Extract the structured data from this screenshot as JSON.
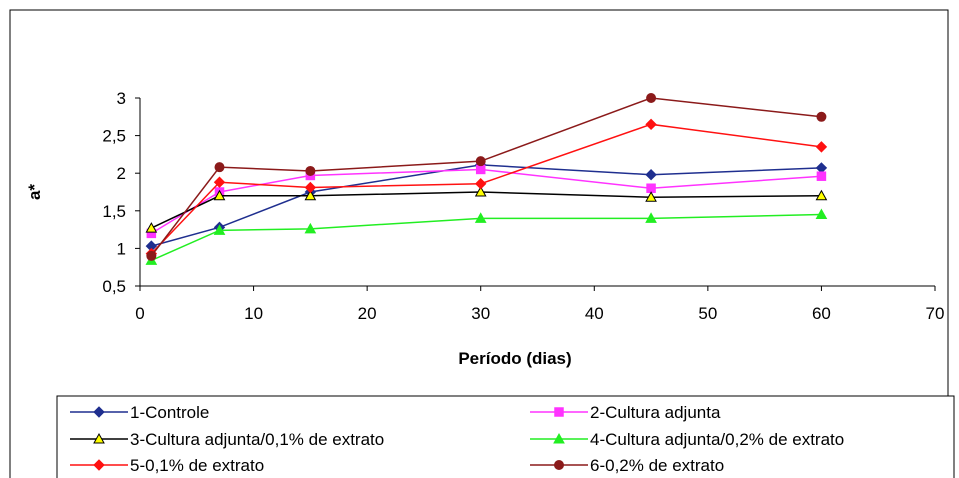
{
  "chart_data": {
    "type": "line",
    "xlabel": "Período (dias)",
    "ylabel": "a*",
    "xlim": [
      0,
      70
    ],
    "ylim": [
      0.5,
      3
    ],
    "xticks": [
      "0",
      "10",
      "20",
      "30",
      "40",
      "50",
      "60",
      "70"
    ],
    "yticks": [
      "0,5",
      "1",
      "1,5",
      "2",
      "2,5",
      "3"
    ],
    "grid": false,
    "legend_position": "bottom",
    "x": [
      1,
      7,
      15,
      30,
      45,
      60
    ],
    "series": [
      {
        "name": "1-Controle",
        "color": "#1f2f8f",
        "marker": "diamond",
        "marker_fill": "#1f2f8f",
        "values": [
          1.03,
          1.28,
          1.75,
          2.11,
          1.98,
          2.07
        ]
      },
      {
        "name": "2-Cultura adjunta",
        "color": "#ff33ff",
        "marker": "square",
        "marker_fill": "#ff33ff",
        "values": [
          1.2,
          1.75,
          1.97,
          2.05,
          1.8,
          1.96
        ]
      },
      {
        "name": "3-Cultura adjunta/0,1% de extrato",
        "color": "#000000",
        "marker": "triangle",
        "marker_fill": "#ffff00",
        "values": [
          1.27,
          1.7,
          1.7,
          1.75,
          1.68,
          1.7
        ]
      },
      {
        "name": "4-Cultura adjunta/0,2% de extrato",
        "color": "#22ee22",
        "marker": "triangle",
        "marker_fill": "#22ee22",
        "values": [
          0.84,
          1.24,
          1.26,
          1.4,
          1.4,
          1.45
        ]
      },
      {
        "name": "5-0,1% de extrato",
        "color": "#ff1111",
        "marker": "diamond",
        "marker_fill": "#ff1111",
        "values": [
          0.93,
          1.88,
          1.81,
          1.86,
          2.65,
          2.35
        ]
      },
      {
        "name": "6-0,2% de extrato",
        "color": "#8b1a1a",
        "marker": "circle",
        "marker_fill": "#8b1a1a",
        "values": [
          0.9,
          2.08,
          2.03,
          2.16,
          3.0,
          2.75
        ]
      }
    ]
  }
}
